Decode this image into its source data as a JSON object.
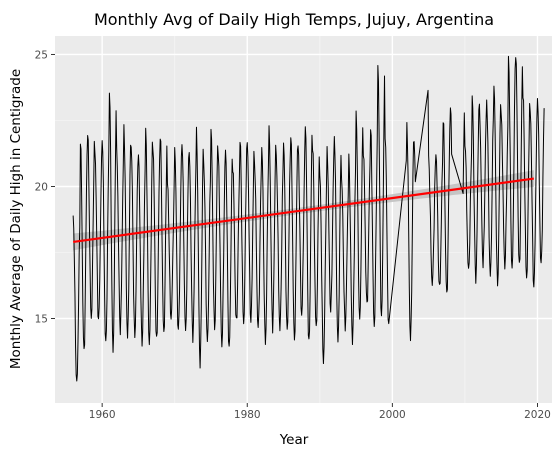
{
  "chart_data": {
    "type": "line",
    "title": "Monthly Avg of Daily High Temps, Jujuy, Argentina",
    "xlabel": "Year",
    "ylabel": "Monthly Average of Daily High in Centigrade",
    "xlim": [
      1953.5,
      2022.0
    ],
    "ylim": [
      11.8,
      25.7
    ],
    "x_ticks": [
      1960,
      1980,
      2000,
      2020
    ],
    "y_ticks": [
      15,
      20,
      25
    ],
    "x_tick_labels": [
      "1960",
      "1980",
      "2000",
      "2020"
    ],
    "y_tick_labels": [
      "15",
      "20",
      "25"
    ],
    "grid": true,
    "legend": "none",
    "series": [
      {
        "type": "line",
        "style": "monthly",
        "start": 1956.0,
        "step": 0.08333,
        "gaps": [
          [
            1999.5,
            2001.9
          ],
          [
            2003.2,
            2004.9
          ],
          [
            2008.2,
            2009.7
          ]
        ],
        "annual_highs": [
          18.9,
          21.8,
          22.0,
          21.3,
          21.9,
          23.6,
          21.3,
          22.2,
          21.5,
          21.1,
          22.1,
          21.5,
          22.0,
          20.1,
          21.5,
          21.7,
          21.2,
          22.0,
          20.8,
          22.2,
          21.1,
          21.4,
          20.8,
          21.8,
          21.6,
          20.9,
          21.5,
          22.1,
          21.0,
          21.7,
          21.9,
          21.5,
          22.4,
          21.6,
          20.4,
          21.4,
          21.9,
          20.2,
          21.0,
          22.8,
          21.3,
          22.2,
          24.6,
          22.0,
          22.2,
          21.3,
          22.3,
          21.7,
          24.3,
          21.0,
          21.3,
          22.6,
          23.0,
          23.1,
          21.7,
          23.4,
          22.9,
          23.2,
          23.8,
          22.6,
          24.9,
          25.1,
          23.5,
          22.8,
          23.4
        ],
        "annual_lows": [
          12.5,
          13.7,
          15.0,
          14.9,
          14.0,
          13.8,
          14.6,
          14.3,
          14.3,
          14.1,
          14.0,
          14.1,
          14.4,
          15.0,
          14.5,
          14.5,
          14.3,
          13.3,
          14.1,
          14.6,
          14.0,
          13.8,
          14.8,
          14.8,
          14.9,
          14.6,
          14.1,
          14.7,
          14.6,
          14.5,
          14.2,
          15.1,
          14.0,
          14.6,
          13.4,
          15.3,
          14.1,
          14.7,
          14.2,
          14.9,
          15.5,
          14.7,
          15.0,
          14.6,
          15.0,
          15.3,
          14.2,
          14.9,
          15.6,
          16.3,
          16.1,
          15.9,
          16.6,
          16.3,
          16.8,
          16.5,
          17.1,
          16.6,
          16.3,
          17.0,
          16.8,
          16.9,
          16.5,
          16.2,
          17.0
        ]
      },
      {
        "type": "line",
        "style": "trend",
        "color": "#ff0000",
        "x": [
          1956.0,
          2019.5
        ],
        "y": [
          17.9,
          20.3
        ]
      }
    ],
    "confidence_band_color": "#bebebe"
  }
}
